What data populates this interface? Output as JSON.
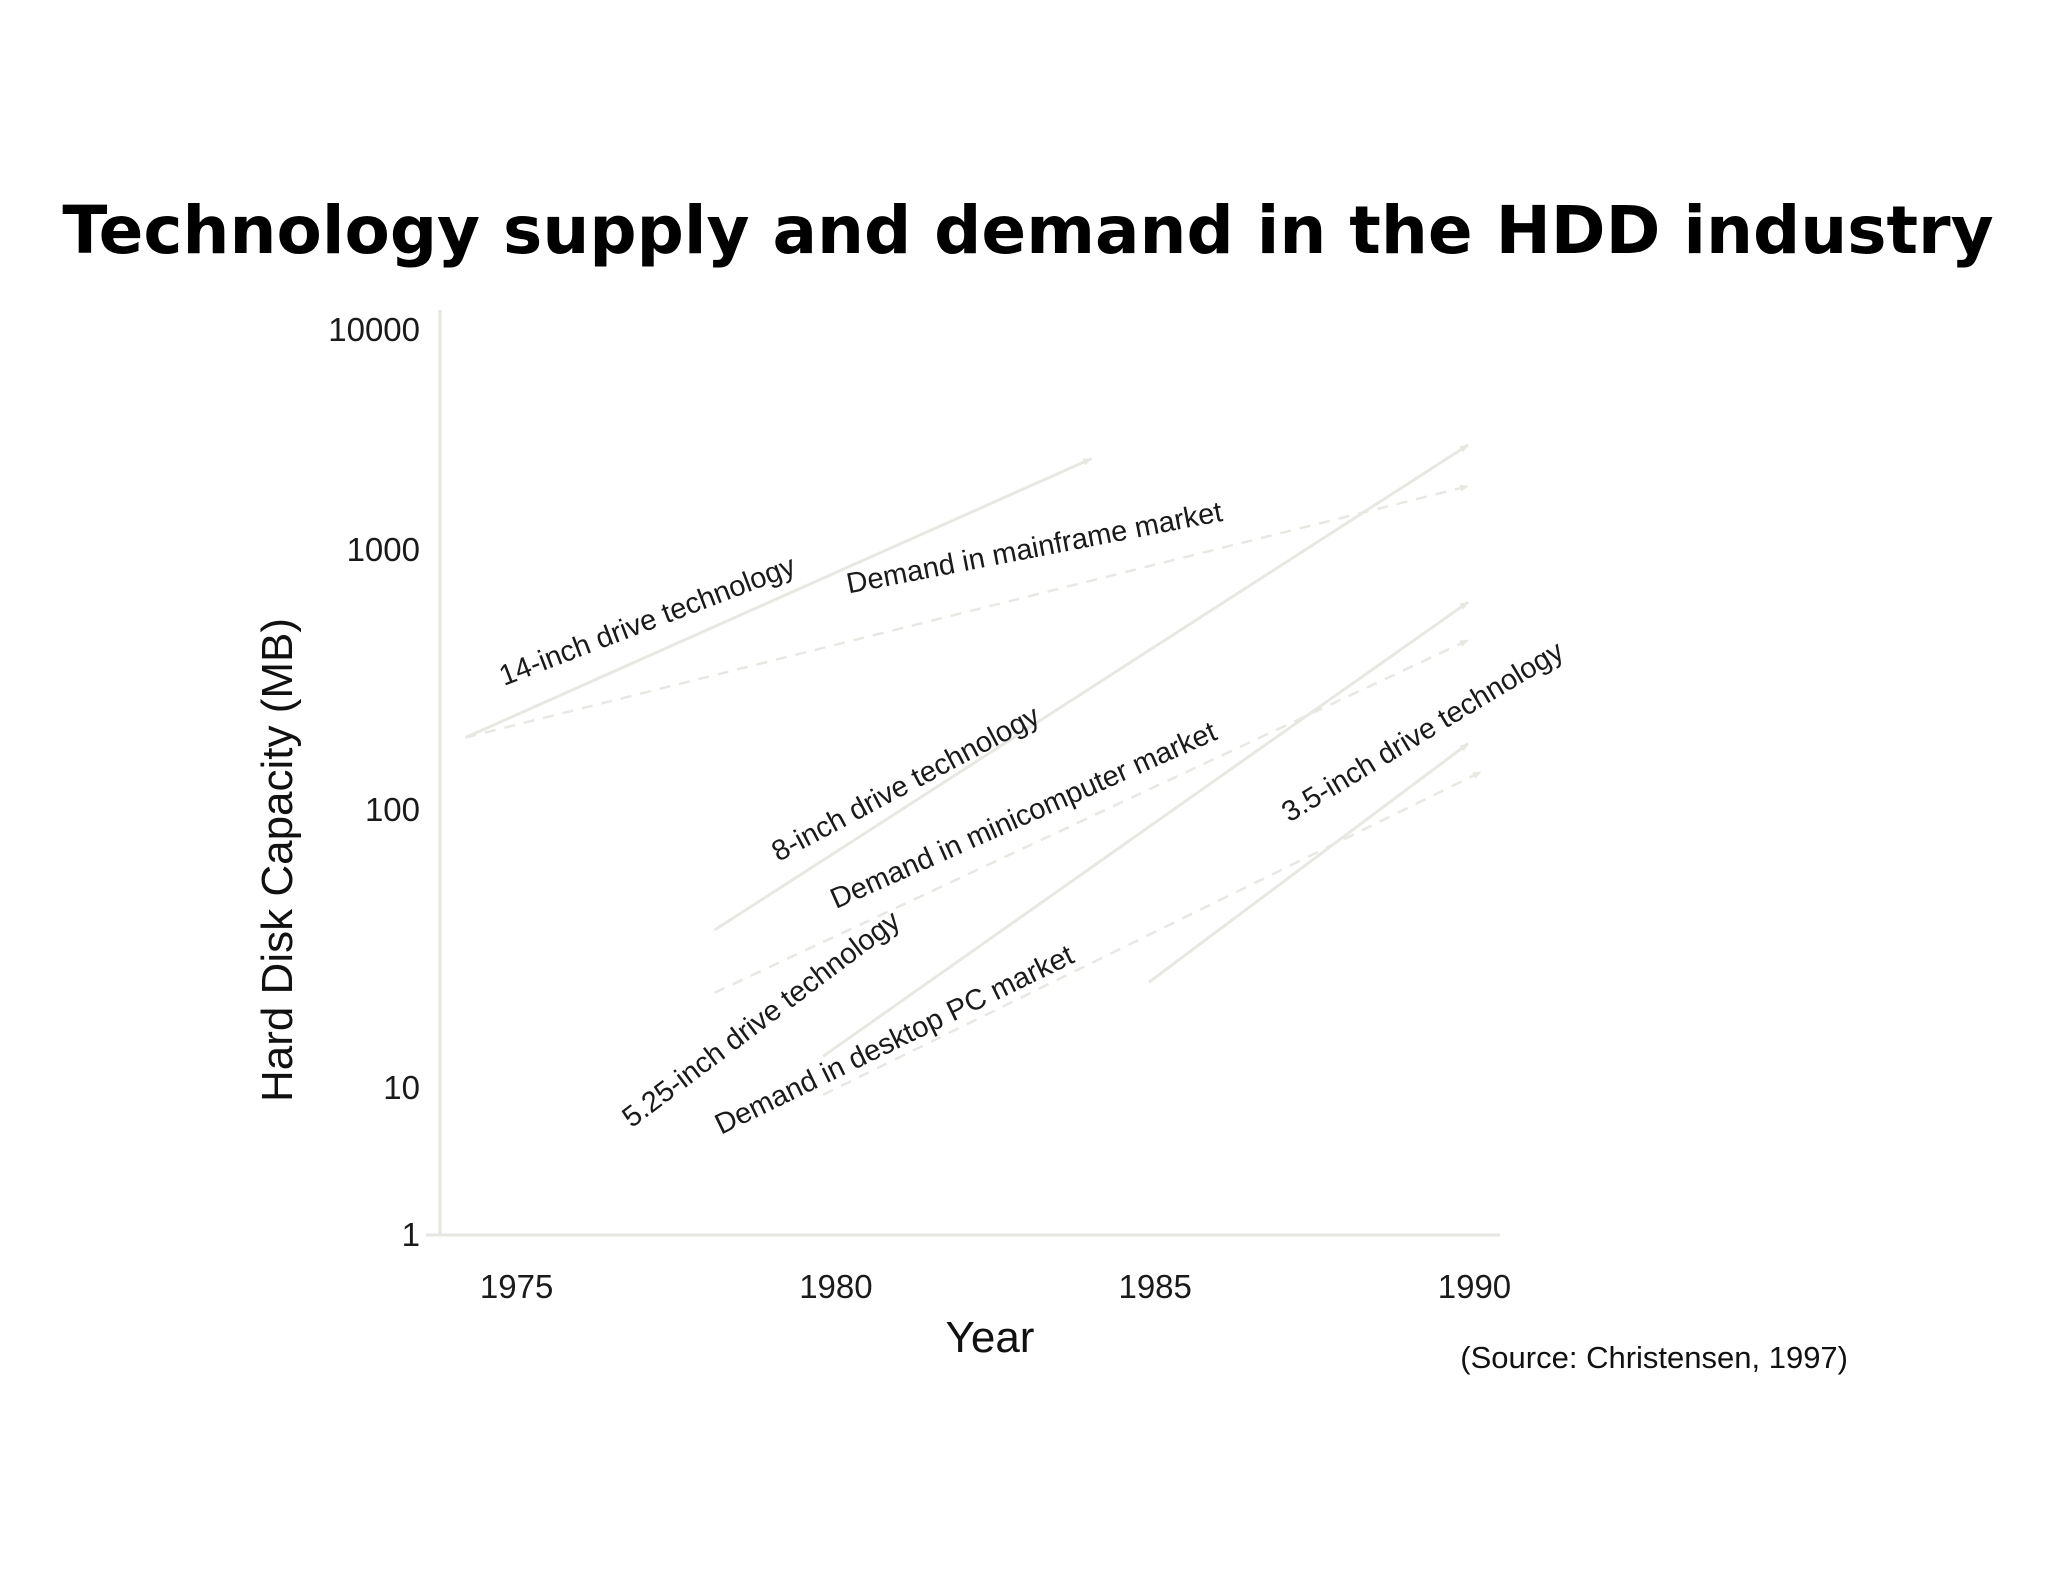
{
  "chart_data": {
    "type": "line",
    "title": "Technology supply and demand in the HDD industry",
    "xlabel": "Year",
    "ylabel": "Hard Disk Capacity (MB)",
    "source": "(Source: Christensen, 1997)",
    "y_scale": "log",
    "xlim": [
      1973.8,
      1990.4
    ],
    "ylim": [
      1,
      10000
    ],
    "x_ticks": [
      {
        "value": 1975,
        "label": "1975"
      },
      {
        "value": 1980,
        "label": "1980"
      },
      {
        "value": 1985,
        "label": "1985"
      },
      {
        "value": 1990,
        "label": "1990"
      }
    ],
    "y_ticks": [
      {
        "value": 1,
        "label": "1"
      },
      {
        "value": 10,
        "label": "10"
      },
      {
        "value": 100,
        "label": "100"
      },
      {
        "value": 1000,
        "label": "1000"
      },
      {
        "value": 10000,
        "label": "10000"
      }
    ],
    "grid": false,
    "legend": "none",
    "line_color": "#e8e8e3",
    "series": [
      {
        "name": "14-inch drive technology",
        "style": "solid",
        "x": [
          1974.2,
          1984
        ],
        "y": [
          190,
          2600
        ],
        "label_at": [
          1974.8,
          300
        ],
        "label_angle": -21
      },
      {
        "name": "Demand in mainframe market",
        "style": "dashed",
        "x": [
          1974.2,
          1989.9
        ],
        "y": [
          190,
          1950
        ],
        "label_at": [
          1980.2,
          680
        ],
        "label_angle": -11
      },
      {
        "name": "8-inch drive technology",
        "style": "solid",
        "x": [
          1978.1,
          1989.9
        ],
        "y": [
          37,
          3000
        ],
        "label_at": [
          1979.1,
          65
        ],
        "label_angle": -28
      },
      {
        "name": "Demand in minicomputer market",
        "style": "dashed",
        "x": [
          1978.1,
          1989.9
        ],
        "y": [
          22,
          450
        ],
        "label_at": [
          1980,
          44
        ],
        "label_angle": -24
      },
      {
        "name": "5.25-inch drive technology",
        "style": "solid",
        "x": [
          1979.8,
          1989.9
        ],
        "y": [
          13,
          630
        ],
        "label_at": [
          1976.8,
          5.3
        ],
        "label_angle": -37
      },
      {
        "name": "Demand in desktop PC market",
        "style": "dashed",
        "x": [
          1979.8,
          1990.1
        ],
        "y": [
          9,
          140
        ],
        "label_at": [
          1978.2,
          4.8
        ],
        "label_angle": -26
      },
      {
        "name": "3.5-inch drive technology",
        "style": "solid",
        "x": [
          1984.9,
          1989.9
        ],
        "y": [
          24,
          180
        ],
        "label_at": [
          1987.1,
          90
        ],
        "label_angle": -31
      }
    ]
  }
}
